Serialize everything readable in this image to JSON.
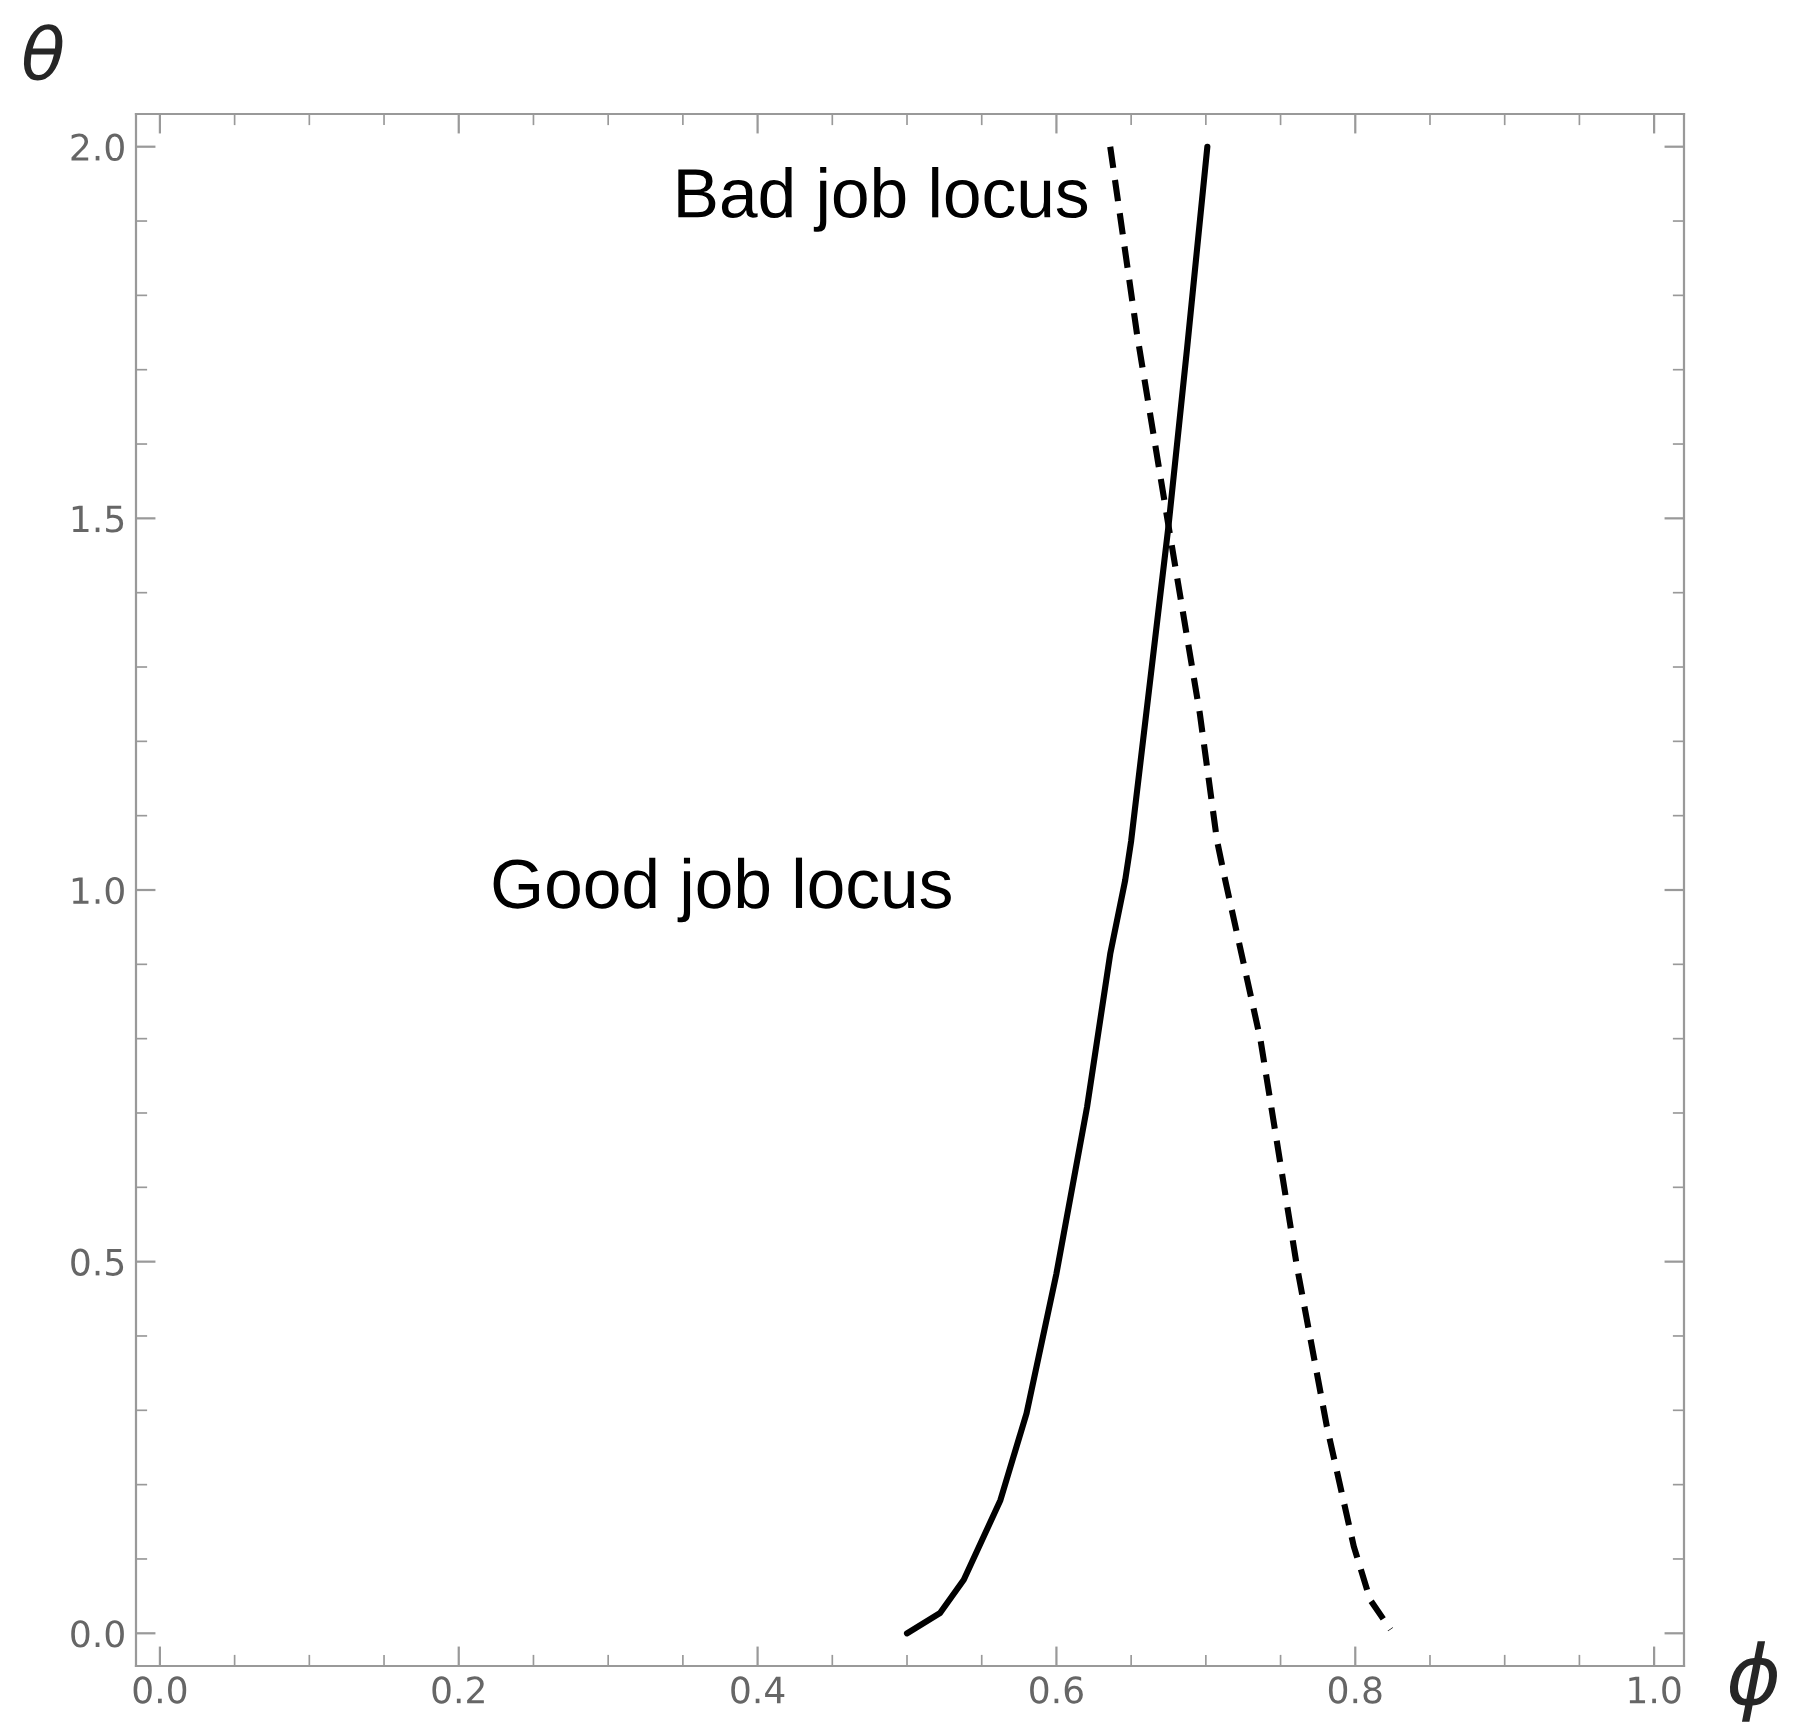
{
  "chart_data": {
    "type": "line",
    "xlabel": "ϕ",
    "ylabel": "θ",
    "xlim": [
      -0.016,
      1.02
    ],
    "ylim": [
      -0.044,
      2.044
    ],
    "xticks": [
      {
        "value": 0,
        "label": "0.0"
      },
      {
        "value": 0.2,
        "label": "0.2"
      },
      {
        "value": 0.4,
        "label": "0.4"
      },
      {
        "value": 0.6,
        "label": "0.6"
      },
      {
        "value": 0.8,
        "label": "0.8"
      },
      {
        "value": 1.0,
        "label": "1.0"
      }
    ],
    "yticks": [
      {
        "value": 0,
        "label": "0.0"
      },
      {
        "value": 0.5,
        "label": "0.5"
      },
      {
        "value": 1.0,
        "label": "1.0"
      },
      {
        "value": 1.5,
        "label": "1.5"
      },
      {
        "value": 2.0,
        "label": "2.0"
      }
    ],
    "grid": false,
    "legend": false,
    "marker": "none",
    "series": [
      {
        "color": "#000000",
        "line_style": "solid",
        "x": [
          0.5,
          0.522,
          0.538,
          0.5625,
          0.58,
          0.6,
          0.6205,
          0.636,
          0.646,
          0.65,
          0.675,
          0.6875,
          0.701
        ],
        "values": [
          0.0,
          0.027,
          0.072,
          0.179,
          0.296,
          0.484,
          0.708,
          0.914,
          1.013,
          1.066,
          1.49,
          1.73,
          2.0
        ]
      },
      {
        "color": "#000000",
        "line_style": "dashed",
        "x": [
          0.636,
          0.654,
          0.675,
          0.696,
          0.7075,
          0.713,
          0.7366,
          0.761,
          0.781,
          0.799,
          0.81,
          0.8236
        ],
        "values": [
          2.0,
          1.747,
          1.49,
          1.237,
          1.066,
          1.013,
          0.798,
          0.493,
          0.278,
          0.117,
          0.045,
          0.005
        ]
      }
    ],
    "annotations": [
      "Bad job locus",
      "Good job locus"
    ]
  }
}
